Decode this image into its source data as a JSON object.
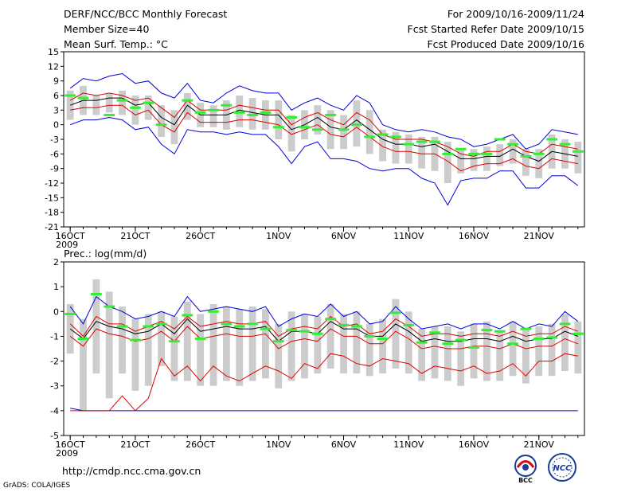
{
  "header": {
    "title": "DERF/NCC/BCC Monthly Forecast",
    "member": "Member Size=40",
    "variable": "Mean Surf. Temp.: °C",
    "period": "For 2009/10/16-2009/11/24",
    "start": "Fcst Started Refer Date 2009/10/15",
    "produced": "Fcst Produced Date 2009/10/16"
  },
  "footer": {
    "url": "http://cmdp.ncc.cma.gov.cn",
    "credit": "GrADS: COLA/IGES",
    "logo1": "BCC",
    "logo2": "NCC"
  },
  "colors": {
    "max_line": "#0000dd",
    "min_line": "#0000dd",
    "band_line": "#dd0000",
    "mean_line": "#000000",
    "box": "#cccccc",
    "marker": "#33ee33"
  },
  "chart_data": [
    {
      "type": "line",
      "title": "Mean Surf. Temp.: °C",
      "x_ticks": [
        "16OCT",
        "21OCT",
        "26OCT",
        "1NOV",
        "6NOV",
        "11NOV",
        "16NOV",
        "21NOV"
      ],
      "x_tick_days": [
        1,
        6,
        11,
        17,
        22,
        27,
        32,
        37
      ],
      "year_label": "2009",
      "days": 40,
      "ylim": [
        -21,
        15
      ],
      "yticks": [
        15,
        12,
        9,
        6,
        3,
        0,
        -3,
        -6,
        -9,
        -12,
        -15,
        -18,
        -21
      ],
      "series": [
        {
          "name": "max",
          "values": [
            7.5,
            9.5,
            9,
            10,
            10.5,
            8.5,
            9,
            6.5,
            5.5,
            8.5,
            5,
            4.5,
            6.5,
            8,
            7,
            6.5,
            6.5,
            3,
            4.5,
            5.5,
            4,
            3,
            6,
            4.5,
            0,
            -1,
            -1.5,
            -1,
            -1.5,
            -2.5,
            -3,
            -4.5,
            -4,
            -3,
            -2,
            -5,
            -4,
            -1,
            -1.5,
            -2
          ]
        },
        {
          "name": "upper",
          "values": [
            5,
            6.5,
            6,
            6.5,
            6,
            5,
            5.5,
            3.5,
            1.5,
            5,
            3,
            3,
            3,
            4,
            3.5,
            3,
            3,
            0,
            1.5,
            2.5,
            1,
            0,
            2.5,
            1,
            -2,
            -3,
            -3,
            -3,
            -3.5,
            -4.5,
            -6,
            -6.5,
            -5.5,
            -5.5,
            -4,
            -5.5,
            -6,
            -4,
            -4.5,
            -5
          ]
        },
        {
          "name": "mean",
          "values": [
            4,
            5,
            5,
            5.5,
            5.5,
            4,
            4.5,
            1.5,
            0,
            4,
            2,
            2,
            2,
            3,
            2.5,
            2,
            2,
            -1,
            0,
            1.5,
            -0.5,
            -1,
            1,
            -1,
            -3,
            -4,
            -4,
            -4.5,
            -4,
            -5.5,
            -7,
            -7,
            -6.5,
            -6.5,
            -5,
            -6.5,
            -7.5,
            -5.5,
            -6,
            -6.5
          ]
        },
        {
          "name": "lower",
          "values": [
            3,
            3.5,
            3.5,
            4,
            4,
            2,
            3,
            0,
            -1.5,
            2.5,
            0.5,
            0.5,
            0.5,
            1,
            1,
            0.5,
            0,
            -2,
            -1,
            0,
            -2,
            -2.5,
            -0.5,
            -2.5,
            -4.5,
            -5.5,
            -5.5,
            -6,
            -6,
            -7.5,
            -9.5,
            -8.5,
            -8,
            -8,
            -7,
            -8.5,
            -9,
            -7,
            -7.5,
            -8
          ]
        },
        {
          "name": "min",
          "values": [
            0,
            1,
            1,
            1.5,
            1,
            -1,
            -0.5,
            -4,
            -6,
            -1,
            -1.5,
            -1.5,
            -2,
            -1.5,
            -2,
            -2,
            -4.5,
            -8,
            -4.5,
            -3.5,
            -7,
            -7,
            -7.5,
            -9,
            -9.5,
            -9,
            -9,
            -11,
            -12,
            -16.5,
            -11.5,
            -11,
            -11,
            -9.5,
            -9.5,
            -13,
            -13,
            -10.5,
            -10.5,
            -12.5
          ]
        },
        {
          "name": "box_top",
          "values": [
            7,
            8,
            6,
            6.5,
            7,
            6,
            6,
            4,
            3,
            6.5,
            4.5,
            4,
            5,
            6,
            5.5,
            5,
            5,
            2,
            3,
            4,
            3,
            2,
            5,
            3,
            -1,
            -1.5,
            -2,
            -2.5,
            -2.5,
            -3.5,
            -5,
            -5,
            -4.5,
            -4,
            -3,
            -5,
            -5,
            -2,
            -3,
            -3.5
          ]
        },
        {
          "name": "box_bottom",
          "values": [
            1,
            2,
            2,
            2.5,
            2,
            0,
            1,
            -2.5,
            -4,
            1,
            -0.5,
            -0.5,
            -1,
            -0.5,
            -1,
            -1,
            -3,
            -5.5,
            -3,
            -2,
            -5,
            -5,
            -4.5,
            -6,
            -7.5,
            -8,
            -8,
            -9,
            -9.5,
            -12,
            -10,
            -9.5,
            -9.5,
            -8.5,
            -8,
            -10.5,
            -11,
            -9,
            -9,
            -10
          ]
        },
        {
          "name": "marker",
          "values": [
            6,
            5.5,
            null,
            2,
            5,
            3.5,
            4.5,
            0,
            null,
            5,
            2.5,
            3,
            4,
            2.5,
            2,
            2.5,
            -0.5,
            1.5,
            -0.5,
            -1,
            2,
            -1,
            0,
            -2.5,
            -2,
            -2.5,
            -4,
            -3.5,
            -3.5,
            -6,
            -5,
            -6,
            -6,
            -3,
            -4,
            -6.5,
            -6,
            -3,
            -4,
            -5.5
          ]
        }
      ]
    },
    {
      "type": "line",
      "title": "Prec.: log(mm/d)",
      "x_ticks": [
        "16OCT",
        "21OCT",
        "26OCT",
        "1NOV",
        "6NOV",
        "11NOV",
        "16NOV",
        "21NOV"
      ],
      "x_tick_days": [
        1,
        6,
        11,
        17,
        22,
        27,
        32,
        37
      ],
      "year_label": "2009",
      "days": 40,
      "ylim": [
        -5,
        2
      ],
      "yticks": [
        2,
        1,
        0,
        -1,
        -2,
        -3,
        -4,
        -5
      ],
      "series": [
        {
          "name": "max",
          "values": [
            0.2,
            -0.5,
            0.6,
            0.2,
            0,
            -0.3,
            -0.2,
            0,
            -0.2,
            0.6,
            0,
            0.1,
            0.2,
            0.1,
            0,
            0.2,
            -0.6,
            -0.3,
            -0.1,
            -0.2,
            0.3,
            -0.2,
            0,
            -0.5,
            -0.4,
            0.2,
            -0.3,
            -0.7,
            -0.6,
            -0.5,
            -0.7,
            -0.5,
            -0.5,
            -0.7,
            -0.4,
            -0.7,
            -0.5,
            -0.6,
            0,
            -0.4
          ]
        },
        {
          "name": "upper",
          "values": [
            -0.5,
            -1,
            -0.2,
            -0.5,
            -0.5,
            -0.8,
            -0.6,
            -0.4,
            -0.7,
            -0.2,
            -0.6,
            -0.5,
            -0.4,
            -0.5,
            -0.5,
            -0.4,
            -1,
            -0.7,
            -0.6,
            -0.7,
            -0.2,
            -0.6,
            -0.5,
            -0.9,
            -0.8,
            -0.3,
            -0.6,
            -1,
            -0.9,
            -0.9,
            -1,
            -0.9,
            -0.9,
            -1,
            -0.8,
            -1,
            -0.9,
            -0.9,
            -0.6,
            -0.8
          ]
        },
        {
          "name": "mean",
          "values": [
            -0.7,
            -1.1,
            -0.4,
            -0.6,
            -0.7,
            -0.9,
            -0.8,
            -0.5,
            -0.9,
            -0.3,
            -0.8,
            -0.7,
            -0.6,
            -0.7,
            -0.7,
            -0.6,
            -1.2,
            -0.8,
            -0.8,
            -0.9,
            -0.4,
            -0.7,
            -0.7,
            -1,
            -1,
            -0.5,
            -0.8,
            -1.2,
            -1.1,
            -1.2,
            -1.2,
            -1.1,
            -1.1,
            -1.2,
            -1,
            -1.2,
            -1.1,
            -1.1,
            -0.8,
            -1
          ]
        },
        {
          "name": "lower",
          "values": [
            -1,
            -1.4,
            -0.7,
            -0.9,
            -1,
            -1.2,
            -1.1,
            -0.8,
            -1.2,
            -0.6,
            -1.1,
            -1,
            -0.9,
            -1,
            -1,
            -0.9,
            -1.5,
            -1.2,
            -1.1,
            -1.2,
            -0.7,
            -1,
            -1,
            -1.3,
            -1.3,
            -0.8,
            -1.1,
            -1.5,
            -1.4,
            -1.5,
            -1.5,
            -1.4,
            -1.4,
            -1.5,
            -1.3,
            -1.5,
            -1.4,
            -1.4,
            -1.1,
            -1.3
          ]
        },
        {
          "name": "min",
          "values": [
            -4,
            -4,
            -4,
            -4,
            -3.4,
            -4,
            -3.5,
            -1.9,
            -2.6,
            -2.2,
            -2.8,
            -2.2,
            -2.6,
            -2.8,
            -2.5,
            -2.2,
            -2.4,
            -2.7,
            -2.1,
            -2.3,
            -1.7,
            -1.8,
            -2.1,
            -2.2,
            -1.9,
            -2,
            -2.1,
            -2.5,
            -2.2,
            -2.3,
            -2.4,
            -2.2,
            -2.5,
            -2.4,
            -2.1,
            -2.6,
            -2,
            -2,
            -1.7,
            -1.8
          ]
        },
        {
          "name": "floor",
          "values": [
            -3.9,
            -4,
            -4,
            -4,
            -4,
            -4,
            -4,
            -4,
            -4,
            -4,
            -4,
            -4,
            -4,
            -4,
            -4,
            -4,
            -4,
            -4,
            -4,
            -4,
            -4,
            -4,
            -4,
            -4,
            -4,
            -4,
            -4,
            -4,
            -4,
            -4,
            -4,
            -4,
            -4,
            -4,
            -4,
            -4,
            -4,
            -4,
            -4,
            -4
          ]
        },
        {
          "name": "box_top",
          "values": [
            0.3,
            -0.3,
            1.3,
            0.8,
            0.2,
            -0.3,
            -0.1,
            0,
            -0.2,
            0.4,
            -0.1,
            0.3,
            0.2,
            0.1,
            0.2,
            0.1,
            -0.5,
            0,
            -0.1,
            -0.2,
            0.3,
            -0.1,
            0,
            -0.5,
            -0.3,
            0.5,
            0,
            -0.7,
            -0.6,
            -0.6,
            -0.8,
            -0.5,
            -0.4,
            -0.8,
            -0.4,
            -0.7,
            -0.6,
            -0.5,
            -0.1,
            -0.4
          ]
        },
        {
          "name": "box_bottom",
          "values": [
            -1.7,
            -4,
            -2.5,
            -3.5,
            -2.5,
            -3.2,
            -3,
            -2.2,
            -2.8,
            -2.8,
            -3,
            -3,
            -2.8,
            -3,
            -2.8,
            -2.7,
            -3.1,
            -2.8,
            -2.7,
            -2.5,
            -2.3,
            -2.5,
            -2.5,
            -2.6,
            -2.5,
            -2.3,
            -2.5,
            -2.8,
            -2.7,
            -2.8,
            -3,
            -2.7,
            -2.8,
            -2.8,
            -2.6,
            -2.9,
            -2.6,
            -2.6,
            -2.4,
            -2.5
          ]
        },
        {
          "name": "marker",
          "values": [
            -0.1,
            -1.1,
            0.7,
            0.2,
            -0.6,
            -1.15,
            -0.6,
            -0.5,
            -1.2,
            -0.15,
            -1.1,
            0,
            -0.5,
            -0.6,
            -0.5,
            -0.7,
            -1.2,
            -0.75,
            -0.8,
            -0.9,
            -0.3,
            -0.55,
            -0.6,
            -1,
            -1.1,
            -0.05,
            -0.55,
            -1.25,
            -0.85,
            -1.3,
            -1.15,
            -1.45,
            -0.75,
            -0.8,
            -1.3,
            -0.7,
            -1.1,
            -1.05,
            -0.5,
            -0.9
          ]
        }
      ]
    }
  ]
}
